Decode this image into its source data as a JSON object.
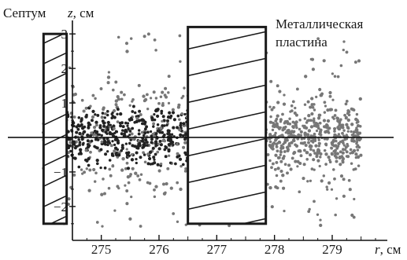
{
  "chart_data": {
    "type": "scatter",
    "xlabel_var": "r",
    "xlabel_unit": ", см",
    "ylabel_var": "z",
    "ylabel_unit": ", см",
    "xlim": [
      274.5,
      279.9
    ],
    "ylim": [
      -2.8,
      3.3
    ],
    "x_ticks": [
      275,
      276,
      277,
      278,
      279
    ],
    "x_tick_labels": [
      "275",
      "276",
      "277",
      "278",
      "279"
    ],
    "y_ticks": [
      -2,
      -1,
      1,
      2,
      3
    ],
    "y_tick_labels": [
      "−2",
      "−1",
      "1",
      "2",
      "3"
    ],
    "y_axis_at_x": 274.5,
    "x_axis_at_y": 0,
    "regions": [
      {
        "name": "septum",
        "label": "Септум",
        "x_range": [
          274.0,
          274.4
        ],
        "z_range": [
          -2.5,
          3.0
        ]
      },
      {
        "name": "metal-plate",
        "label_lines": [
          "Металлическая",
          "пластина"
        ],
        "x_range": [
          276.5,
          277.85
        ],
        "z_range": [
          -2.5,
          3.2
        ]
      }
    ],
    "scatter": {
      "point_color": "#777777",
      "dark_point_color": "#222222",
      "x_range": [
        274.0,
        279.5
      ],
      "z_spread_core": 0.45,
      "z_spread_halo": 1.1
    }
  }
}
